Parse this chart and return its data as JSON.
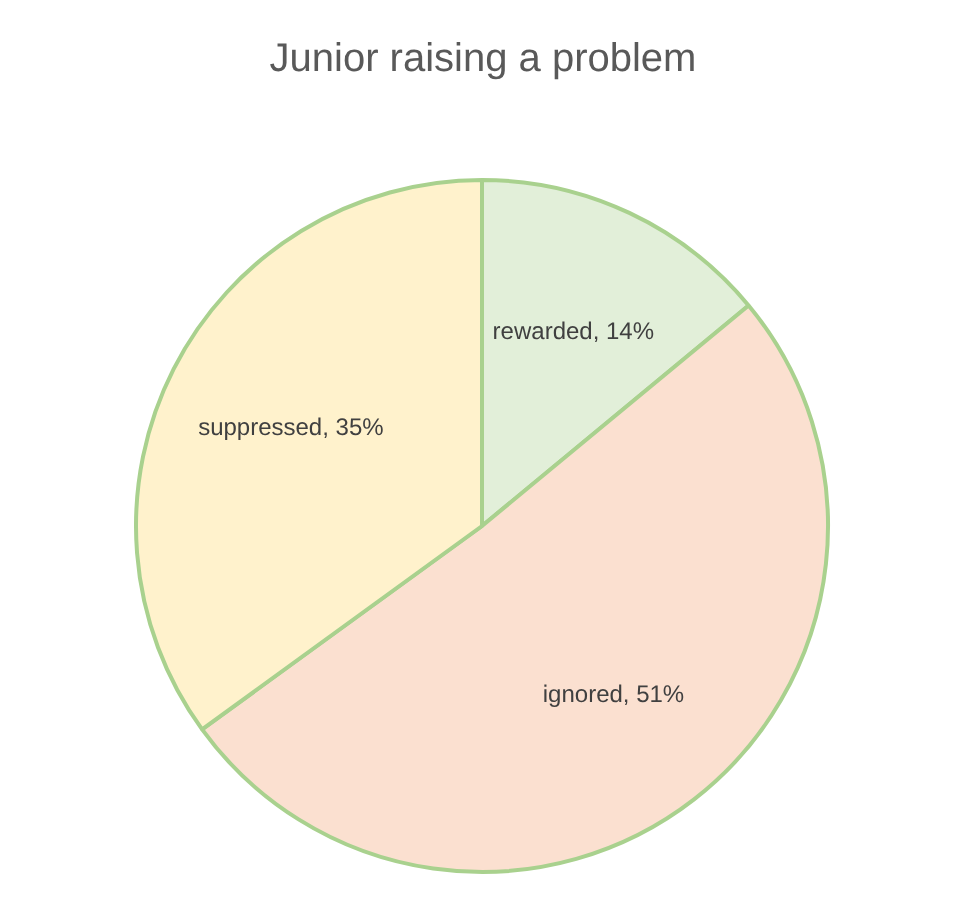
{
  "chart_data": {
    "type": "pie",
    "title": "Junior raising a problem",
    "categories": [
      "rewarded",
      "ignored",
      "suppressed"
    ],
    "values": [
      14,
      51,
      35
    ],
    "colors": [
      "#e2efd9",
      "#fbe0d0",
      "#fff2cc"
    ],
    "value_labels": [
      "14%",
      "51%",
      "35%"
    ],
    "legend": false
  }
}
